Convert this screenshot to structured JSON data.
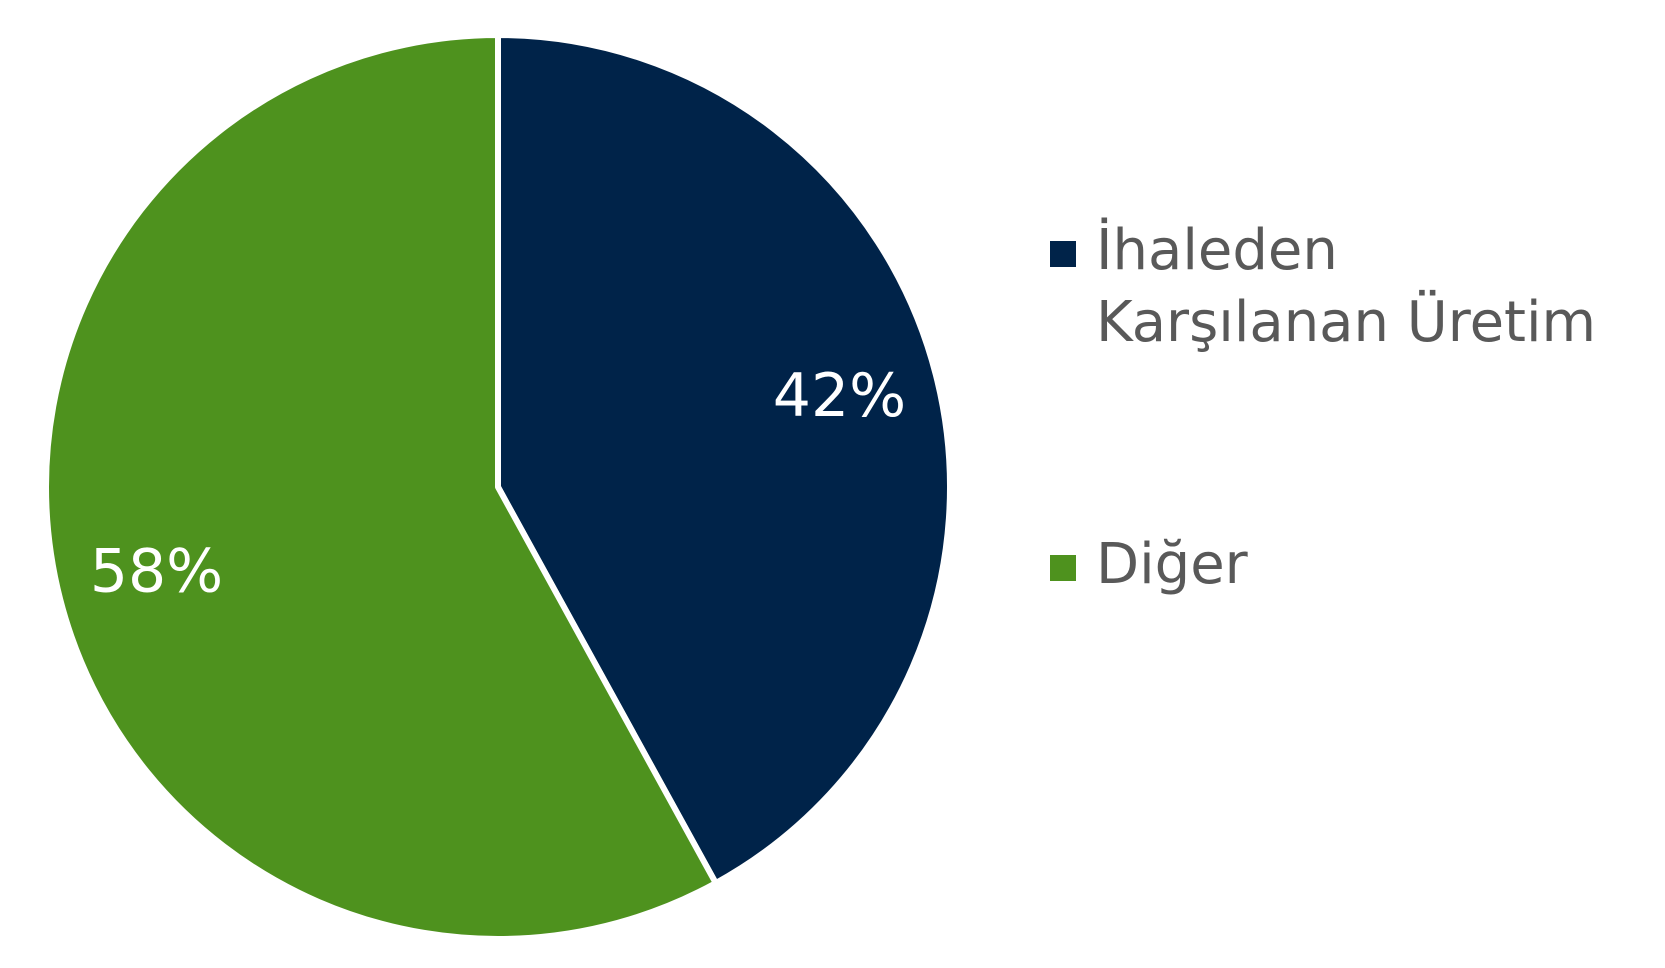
{
  "chart_data": {
    "type": "pie",
    "categories": [
      "İhaleden Karşılanan Üretim",
      "Diğer"
    ],
    "values": [
      42,
      58
    ],
    "value_labels": [
      "42%",
      "58%"
    ],
    "colors": [
      "#002349",
      "#4e921e"
    ],
    "legend": "right"
  }
}
